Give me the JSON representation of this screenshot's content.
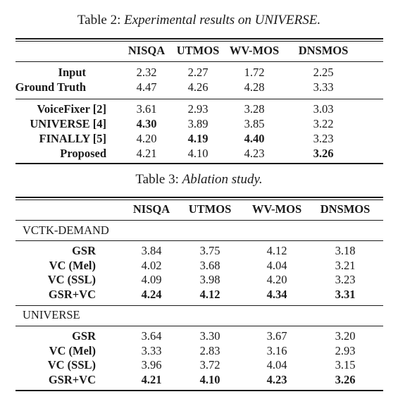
{
  "table2": {
    "caption_prefix": "Table 2:",
    "caption_title": "Experimental results on UNIVERSE.",
    "headers": [
      "NISQA",
      "UTMOS",
      "WV-MOS",
      "DNSMOS"
    ],
    "group1": [
      {
        "label": "Input",
        "values": [
          "2.32",
          "2.27",
          "1.72",
          "2.25"
        ],
        "bold": [
          false,
          false,
          false,
          false
        ]
      },
      {
        "label": "Ground Truth",
        "values": [
          "4.47",
          "4.26",
          "4.28",
          "3.33"
        ],
        "bold": [
          false,
          false,
          false,
          false
        ]
      }
    ],
    "group2": [
      {
        "label": "VoiceFixer [2]",
        "values": [
          "3.61",
          "2.93",
          "3.28",
          "3.03"
        ],
        "bold": [
          false,
          false,
          false,
          false
        ]
      },
      {
        "label": "UNIVERSE [4]",
        "values": [
          "4.30",
          "3.89",
          "3.85",
          "3.22"
        ],
        "bold": [
          true,
          false,
          false,
          false
        ]
      },
      {
        "label": "FINALLY [5]",
        "values": [
          "4.20",
          "4.19",
          "4.40",
          "3.23"
        ],
        "bold": [
          false,
          true,
          true,
          false
        ]
      },
      {
        "label": "Proposed",
        "values": [
          "4.21",
          "4.10",
          "4.23",
          "3.26"
        ],
        "bold": [
          false,
          false,
          false,
          true
        ]
      }
    ]
  },
  "table3": {
    "caption_prefix": "Table 3:",
    "caption_title": "Ablation study.",
    "headers": [
      "NISQA",
      "UTMOS",
      "WV-MOS",
      "DNSMOS"
    ],
    "section1": {
      "title": "VCTK-DEMAND",
      "rows": [
        {
          "label": "GSR",
          "values": [
            "3.84",
            "3.75",
            "4.12",
            "3.18"
          ],
          "bold": [
            false,
            false,
            false,
            false
          ]
        },
        {
          "label": "VC (Mel)",
          "values": [
            "4.02",
            "3.68",
            "4.04",
            "3.21"
          ],
          "bold": [
            false,
            false,
            false,
            false
          ]
        },
        {
          "label": "VC (SSL)",
          "values": [
            "4.09",
            "3.98",
            "4.20",
            "3.23"
          ],
          "bold": [
            false,
            false,
            false,
            false
          ]
        },
        {
          "label": "GSR+VC",
          "values": [
            "4.24",
            "4.12",
            "4.34",
            "3.31"
          ],
          "bold": [
            true,
            true,
            true,
            true
          ]
        }
      ]
    },
    "section2": {
      "title": "UNIVERSE",
      "rows": [
        {
          "label": "GSR",
          "values": [
            "3.64",
            "3.30",
            "3.67",
            "3.20"
          ],
          "bold": [
            false,
            false,
            false,
            false
          ]
        },
        {
          "label": "VC (Mel)",
          "values": [
            "3.33",
            "2.83",
            "3.16",
            "2.93"
          ],
          "bold": [
            false,
            false,
            false,
            false
          ]
        },
        {
          "label": "VC (SSL)",
          "values": [
            "3.96",
            "3.72",
            "4.04",
            "3.15"
          ],
          "bold": [
            false,
            false,
            false,
            false
          ]
        },
        {
          "label": "GSR+VC",
          "values": [
            "4.21",
            "4.10",
            "4.23",
            "3.26"
          ],
          "bold": [
            true,
            true,
            true,
            true
          ]
        }
      ]
    }
  }
}
